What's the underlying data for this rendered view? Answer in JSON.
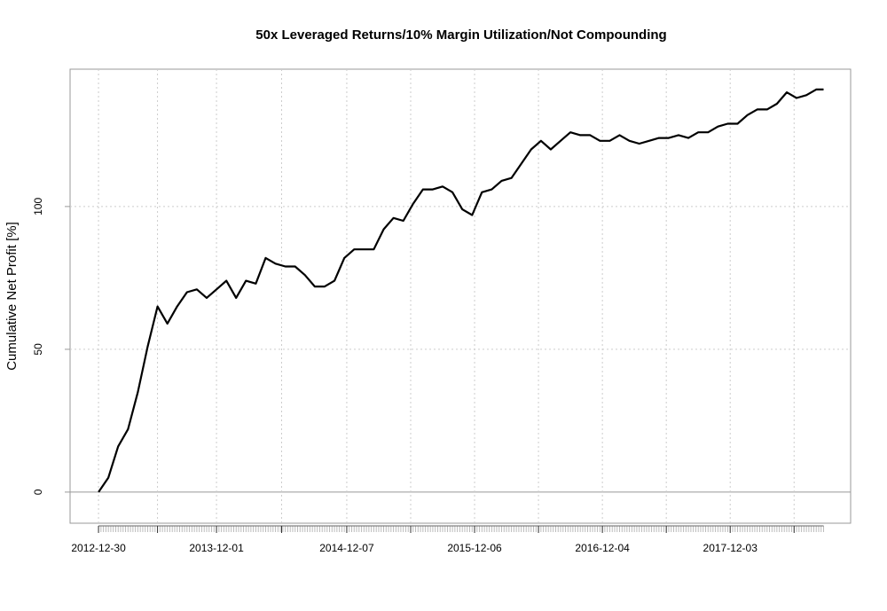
{
  "chart_data": {
    "type": "line",
    "title": "50x Leveraged Returns/10% Margin Utilization/Not Compounding",
    "y_label": "Cumulative Net Profit [%]",
    "x": [
      "2012-12-30",
      "2013-01-27",
      "2013-02-24",
      "2013-03-24",
      "2013-04-21",
      "2013-05-19",
      "2013-06-16",
      "2013-07-14",
      "2013-08-11",
      "2013-09-08",
      "2013-10-06",
      "2013-11-03",
      "2013-12-01",
      "2013-12-29",
      "2014-01-26",
      "2014-02-23",
      "2014-03-23",
      "2014-04-20",
      "2014-05-18",
      "2014-06-15",
      "2014-07-13",
      "2014-08-10",
      "2014-09-07",
      "2014-10-05",
      "2014-11-02",
      "2014-11-30",
      "2014-12-28",
      "2015-01-25",
      "2015-02-22",
      "2015-03-22",
      "2015-04-19",
      "2015-05-17",
      "2015-06-14",
      "2015-07-12",
      "2015-08-09",
      "2015-09-06",
      "2015-10-04",
      "2015-11-01",
      "2015-11-29",
      "2015-12-27",
      "2016-01-24",
      "2016-02-21",
      "2016-03-20",
      "2016-04-17",
      "2016-05-15",
      "2016-06-12",
      "2016-07-10",
      "2016-08-07",
      "2016-09-04",
      "2016-10-02",
      "2016-10-30",
      "2016-11-27",
      "2016-12-25",
      "2017-01-22",
      "2017-02-19",
      "2017-03-19",
      "2017-04-16",
      "2017-05-14",
      "2017-06-11",
      "2017-07-09",
      "2017-08-06",
      "2017-09-03",
      "2017-10-01",
      "2017-10-29",
      "2017-11-26",
      "2017-12-24",
      "2018-01-21",
      "2018-02-18",
      "2018-03-18",
      "2018-04-15",
      "2018-05-13",
      "2018-06-10",
      "2018-07-08",
      "2018-08-05",
      "2018-08-26"
    ],
    "series": [
      {
        "color": "#000000",
        "values": [
          0,
          5,
          16,
          22,
          35,
          51,
          65,
          59,
          65,
          70,
          71,
          68,
          71,
          74,
          68,
          74,
          73,
          82,
          80,
          79,
          79,
          76,
          72,
          72,
          74,
          82,
          85,
          85,
          85,
          92,
          96,
          95,
          101,
          106,
          106,
          107,
          105,
          99,
          97,
          105,
          106,
          109,
          110,
          115,
          120,
          123,
          120,
          123,
          126,
          125,
          125,
          123,
          123,
          125,
          123,
          122,
          123,
          124,
          124,
          125,
          124,
          126,
          126,
          128,
          129,
          129,
          132,
          134,
          134,
          136,
          140,
          138,
          139,
          141,
          141
        ]
      }
    ],
    "xlim": [
      "2012-10-10",
      "2018-11-11"
    ],
    "xticks": [
      "2012-12-30",
      "2013-12-01",
      "2014-12-07",
      "2015-12-06",
      "2016-12-04",
      "2017-12-03"
    ],
    "ylim": [
      -10.9,
      148.1
    ],
    "yticks": [
      0,
      50,
      100
    ],
    "grid": true
  }
}
